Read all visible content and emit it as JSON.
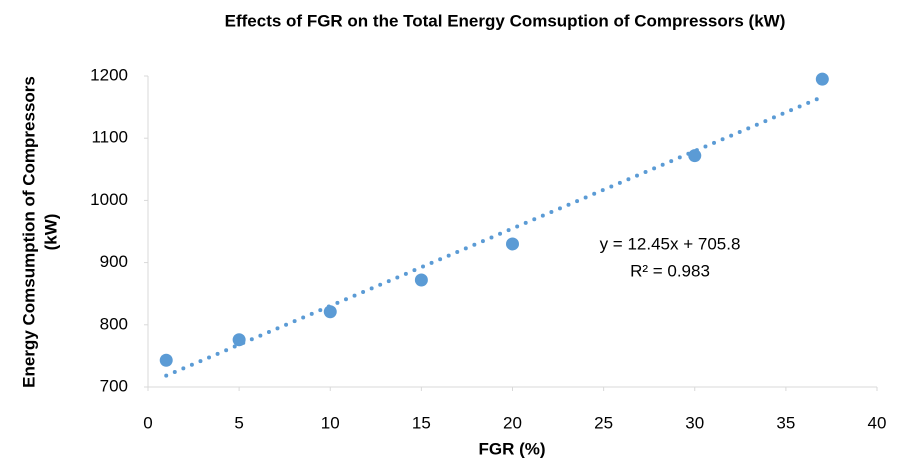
{
  "chart_data": {
    "type": "scatter",
    "title": "Effects of FGR on the Total Energy Comsuption of Compressors (kW)",
    "x_label": "FGR (%)",
    "y_label": [
      "Energy  Comsumption of Compressors",
      "(kW)"
    ],
    "series": [
      {
        "name": "Energy Consumption",
        "color": "#5b9bd5",
        "x": [
          1,
          5,
          10,
          15,
          20,
          30,
          37
        ],
        "values": [
          743,
          776,
          821,
          872,
          930,
          1072,
          1195
        ]
      }
    ],
    "trendline": {
      "slope": 12.45,
      "intercept": 705.8,
      "equation": "y = 12.45x + 705.8",
      "r_squared": "R² = 0.983"
    },
    "xlim": [
      0,
      40
    ],
    "xticks": [
      0,
      5,
      10,
      15,
      20,
      25,
      30,
      35,
      40
    ],
    "ylim": [
      700,
      1200
    ],
    "yticks": [
      700,
      800,
      900,
      1000,
      1100,
      1200
    ],
    "grid": false
  }
}
